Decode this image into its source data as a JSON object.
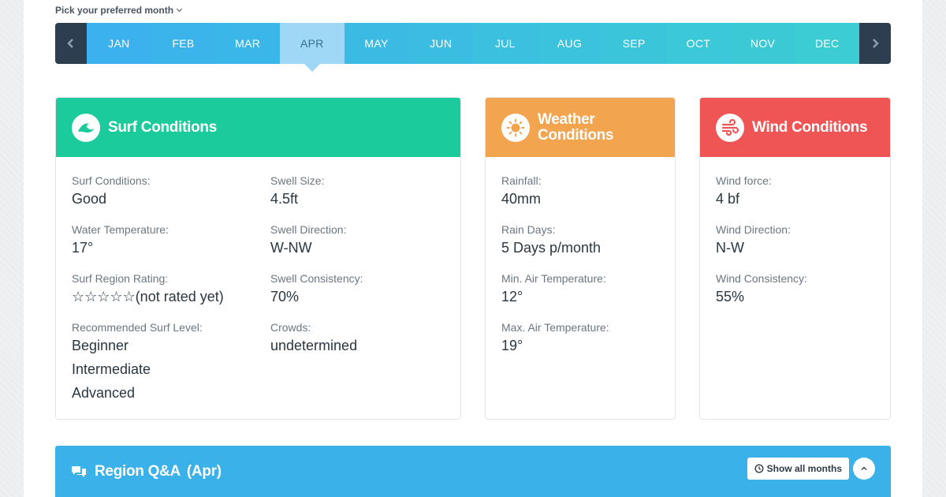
{
  "month_picker": {
    "label": "Pick your preferred month",
    "months": [
      "JAN",
      "FEB",
      "MAR",
      "APR",
      "MAY",
      "JUN",
      "JUL",
      "AUG",
      "SEP",
      "OCT",
      "NOV",
      "DEC"
    ],
    "active_month": "APR",
    "month_colors": [
      "#3bb1ee",
      "#3bb3eb",
      "#3bb6e9",
      "#9fd8f6",
      "#3bbbe4",
      "#3bbde2",
      "#3bc0df",
      "#3bc2dd",
      "#3bc5da",
      "#3bc8d8",
      "#3bcad5",
      "#3bcdd3"
    ]
  },
  "surf": {
    "title": "Surf Conditions",
    "color": "#1ccb9b",
    "left": [
      {
        "label": "Surf Conditions:",
        "value": "Good"
      },
      {
        "label": "Water Temperature:",
        "value": "17°"
      },
      {
        "label": "Surf Region Rating:",
        "stars": "☆☆☆☆☆",
        "value": "(not rated yet)"
      },
      {
        "label": "Recommended Surf Level:",
        "values": [
          "Beginner",
          "Intermediate",
          "Advanced"
        ]
      }
    ],
    "right": [
      {
        "label": "Swell Size:",
        "value": "4.5ft"
      },
      {
        "label": "Swell Direction:",
        "value": "W-NW"
      },
      {
        "label": "Swell Consistency:",
        "value": "70%"
      },
      {
        "label": "Crowds:",
        "value": "undetermined"
      }
    ]
  },
  "weather": {
    "title_line1": "Weather",
    "title_line2": "Conditions",
    "color": "#f2a44f",
    "stats": [
      {
        "label": "Rainfall:",
        "value": "40mm"
      },
      {
        "label": "Rain Days:",
        "value": "5 Days p/month"
      },
      {
        "label": "Min. Air Temperature:",
        "value": "12°"
      },
      {
        "label": "Max. Air Temperature:",
        "value": "19°"
      }
    ]
  },
  "wind": {
    "title": "Wind Conditions",
    "color": "#f05556",
    "stats": [
      {
        "label": "Wind force:",
        "value": "4 bf"
      },
      {
        "label": "Wind Direction:",
        "value": "N-W"
      },
      {
        "label": "Wind Consistency:",
        "value": "55%"
      }
    ]
  },
  "qa": {
    "title": "Region Q&A",
    "month": "(Apr)",
    "show_all_label": "Show all months",
    "color": "#3ab1e8"
  }
}
